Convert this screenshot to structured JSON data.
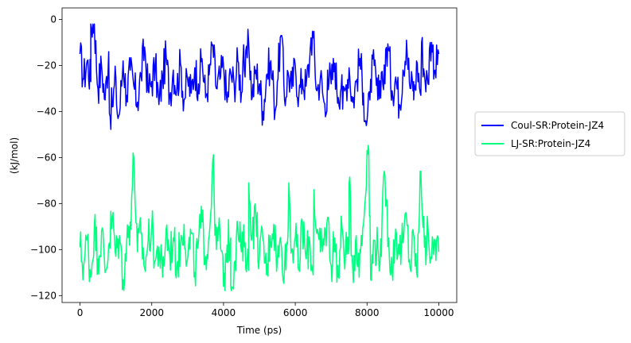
{
  "chart_data": {
    "type": "line",
    "title": "",
    "xlabel": "Time (ps)",
    "ylabel": "(kJ/mol)",
    "xlim": [
      -500,
      10500
    ],
    "ylim": [
      -123,
      5
    ],
    "xticks": [
      0,
      2000,
      4000,
      6000,
      8000,
      10000
    ],
    "yticks": [
      0,
      -20,
      -40,
      -60,
      -80,
      -100,
      -120
    ],
    "xtick_labels": [
      "0",
      "2000",
      "4000",
      "6000",
      "8000",
      "10000"
    ],
    "ytick_labels": [
      "0",
      "−20",
      "−40",
      "−60",
      "−80",
      "−100",
      "−120"
    ],
    "grid": false,
    "legend_placement": "outside-right",
    "x": [
      0,
      100,
      200,
      300,
      400,
      500,
      600,
      700,
      800,
      900,
      1000,
      1100,
      1200,
      1300,
      1400,
      1500,
      1600,
      1700,
      1800,
      1900,
      2000,
      2100,
      2200,
      2300,
      2400,
      2500,
      2600,
      2700,
      2800,
      2900,
      3000,
      3100,
      3200,
      3300,
      3400,
      3500,
      3600,
      3700,
      3800,
      3900,
      4000,
      4100,
      4200,
      4300,
      4400,
      4500,
      4600,
      4700,
      4800,
      4900,
      5000,
      5100,
      5200,
      5300,
      5400,
      5500,
      5600,
      5700,
      5800,
      5900,
      6000,
      6100,
      6200,
      6300,
      6400,
      6500,
      6600,
      6700,
      6800,
      6900,
      7000,
      7100,
      7200,
      7300,
      7400,
      7500,
      7600,
      7700,
      7800,
      7900,
      8000,
      8100,
      8200,
      8300,
      8400,
      8500,
      8600,
      8700,
      8800,
      8900,
      9000,
      9100,
      9200,
      9300,
      9400,
      9500,
      9600,
      9700,
      9800,
      9900,
      10000
    ],
    "series": [
      {
        "name": "Coul-SR:Protein-JZ4",
        "color": "#0000ff",
        "values": [
          -15,
          -26,
          -18,
          -27,
          -2,
          -30,
          -20,
          -35,
          -14,
          -38,
          -25,
          -41,
          -18,
          -33,
          -22,
          -29,
          -36,
          -24,
          -12,
          -31,
          -27,
          -20,
          -37,
          -25,
          -16,
          -33,
          -22,
          -30,
          -19,
          -35,
          -26,
          -32,
          -21,
          -28,
          -17,
          -34,
          -24,
          -11,
          -30,
          -26,
          -20,
          -36,
          -23,
          -29,
          -18,
          -32,
          -25,
          -10,
          -34,
          -22,
          -28,
          -40,
          -24,
          -19,
          -31,
          -27,
          -7,
          -35,
          -23,
          -30,
          -20,
          -33,
          -26,
          -29,
          -18,
          -8,
          -31,
          -25,
          -36,
          -22,
          -28,
          -19,
          -34,
          -24,
          -30,
          -21,
          -36,
          -27,
          -17,
          -32,
          -44,
          -26,
          -20,
          -35,
          -23,
          -28,
          -13,
          -31,
          -25,
          -37,
          -22,
          -9,
          -30,
          -27,
          -19,
          -33,
          -24,
          -28,
          -10,
          -22,
          -15
        ],
        "extra_points": [
          [
            300,
            -2
          ],
          [
            820,
            -41
          ],
          [
            1040,
            -41
          ],
          [
            4560,
            -11
          ],
          [
            5440,
            -40
          ],
          [
            5620,
            -7
          ],
          [
            6440,
            -8
          ],
          [
            6860,
            -41
          ],
          [
            7320,
            -39
          ],
          [
            7960,
            -44
          ],
          [
            8080,
            -35
          ],
          [
            8520,
            -13
          ],
          [
            9300,
            -35
          ],
          [
            9520,
            -10
          ],
          [
            9760,
            -10
          ]
        ]
      },
      {
        "name": "LJ-SR:Protein-JZ4",
        "color": "#00ff7f",
        "values": [
          -99,
          -107,
          -95,
          -112,
          -89,
          -104,
          -92,
          -110,
          -98,
          -86,
          -103,
          -94,
          -113,
          -97,
          -88,
          -60,
          -101,
          -93,
          -108,
          -96,
          -90,
          -105,
          -99,
          -112,
          -91,
          -102,
          -95,
          -107,
          -98,
          -89,
          -104,
          -93,
          -110,
          -97,
          -88,
          -103,
          -94,
          -61,
          -100,
          -92,
          -116,
          -98,
          -95,
          -106,
          -91,
          -101,
          -97,
          -109,
          -93,
          -85,
          -103,
          -96,
          -111,
          -94,
          -89,
          -105,
          -97,
          -108,
          -92,
          -100,
          -95,
          -109,
          -88,
          -104,
          -96,
          -111,
          -93,
          -101,
          -98,
          -86,
          -107,
          -95,
          -112,
          -90,
          -102,
          -97,
          -108,
          -94,
          -100,
          -89,
          -57,
          -113,
          -96,
          -99,
          -103,
          -68,
          -95,
          -110,
          -91,
          -102,
          -97,
          -86,
          -108,
          -94,
          -112,
          -66,
          -99,
          -91,
          -104,
          -96,
          -101
        ],
        "extra_points": [
          [
            1500,
            -60
          ],
          [
            3700,
            -61
          ],
          [
            4200,
            -116
          ],
          [
            4700,
            -71
          ],
          [
            5820,
            -71
          ],
          [
            6520,
            -74
          ],
          [
            7500,
            -71
          ],
          [
            7780,
            -112
          ],
          [
            8050,
            -57
          ],
          [
            8480,
            -66
          ],
          [
            9480,
            -66
          ],
          [
            9660,
            -100
          ]
        ]
      }
    ]
  }
}
